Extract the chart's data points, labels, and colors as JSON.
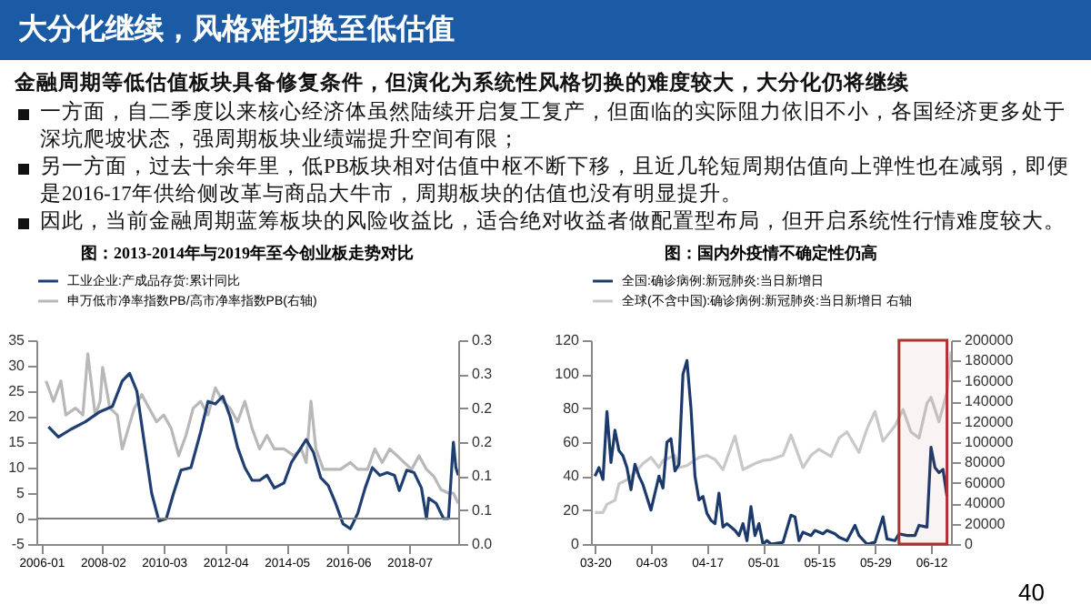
{
  "chart_data": [
    {
      "type": "other",
      "title": "大分化继续，风格难切换至低估值",
      "subtitle": "金融周期等低估值板块具备修复条件，但演化为系统性风格切换的难度较大，大分化仍将继续",
      "annotations": [
        "一方面，自二季度以来核心经济体虽然陆续开启复工复产，但面临的实际阻力依旧不小，各国经济更多处于深坑爬坡状态，强周期板块业绩端提升空间有限；",
        "另一方面，过去十余年里，低PB板块相对估值中枢不断下移，且近几轮短周期估值向上弹性也在减弱，即便是2016-17年供给侧改革与商品大牛市，周期板块的估值也没有明显提升。",
        "因此，当前金融周期蓝筹板块的风险收益比，适合绝对收益者做配置型布局，但开启系统性行情难度较大。",
        "40"
      ]
    },
    {
      "type": "line",
      "title": "图：2013-2014年与2019年至今创业板走势对比",
      "legend": "top",
      "xlim": [
        "2005-11",
        "2020-03"
      ],
      "xticks": [
        "2006-01",
        "2008-02",
        "2010-03",
        "2012-04",
        "2014-05",
        "2016-06",
        "2018-07"
      ],
      "ylim": [
        -5,
        35
      ],
      "yticks": [
        -5,
        0,
        5,
        10,
        15,
        20,
        25,
        30,
        35
      ],
      "y2lim": [
        0,
        0.3
      ],
      "y2ticks": [
        {
          "value": 0,
          "label": "0.0"
        },
        {
          "value": 0.05,
          "label": "0.1"
        },
        {
          "value": 0.1,
          "label": "0.1"
        },
        {
          "value": 0.15,
          "label": "0.2"
        },
        {
          "value": 0.2,
          "label": "0.2"
        },
        {
          "value": 0.25,
          "label": "0.3"
        },
        {
          "value": 0.3,
          "label": "0.3"
        }
      ],
      "ref_lines": [
        {
          "axis": "y",
          "value": 0,
          "color": "#7f7f7f"
        }
      ],
      "series": [
        {
          "name": "工业企业:产成品存货:累计同比",
          "color": "#1f3f73",
          "x": [
            "2006-04",
            "2006-08",
            "2007-01",
            "2007-07",
            "2008-01",
            "2008-06",
            "2008-10",
            "2009-01",
            "2009-04",
            "2009-07",
            "2009-10",
            "2010-01",
            "2010-04",
            "2010-07",
            "2010-10",
            "2011-02",
            "2011-06",
            "2011-09",
            "2011-12",
            "2012-03",
            "2012-06",
            "2012-09",
            "2012-12",
            "2013-03",
            "2013-06",
            "2013-09",
            "2013-12",
            "2014-04",
            "2014-07",
            "2014-11",
            "2015-01",
            "2015-04",
            "2015-07",
            "2015-10",
            "2016-01",
            "2016-04",
            "2016-07",
            "2016-10",
            "2017-01",
            "2017-04",
            "2017-07",
            "2017-10",
            "2018-01",
            "2018-03",
            "2018-06",
            "2018-09",
            "2018-12",
            "2019-02",
            "2019-03",
            "2019-06",
            "2019-09",
            "2019-11",
            "2020-01",
            "2020-02",
            "2020-03"
          ],
          "values": [
            18,
            16,
            17.5,
            19,
            21,
            22,
            27,
            28.5,
            25,
            15,
            5,
            -0.5,
            0,
            5,
            9.5,
            10,
            17,
            23,
            22.5,
            24,
            20,
            14,
            10,
            7.5,
            7.5,
            8.5,
            6,
            7,
            11,
            14,
            15.5,
            13,
            8,
            6.5,
            3,
            -1,
            -2,
            1,
            6,
            10,
            8.5,
            9,
            8.5,
            5.5,
            9.5,
            9,
            6,
            0,
            4,
            3,
            0,
            0,
            15,
            10,
            8.5
          ]
        },
        {
          "name": "申万低市净率指数PB/高市净率指数PB(右轴)",
          "color": "#b8b8b8",
          "axis": "y2",
          "x": [
            "2006-03",
            "2006-06",
            "2006-09",
            "2006-11",
            "2007-03",
            "2007-06",
            "2007-08",
            "2007-11",
            "2008-01",
            "2008-02",
            "2008-05",
            "2008-08",
            "2008-10",
            "2009-03",
            "2009-06",
            "2009-09",
            "2009-12",
            "2010-03",
            "2010-06",
            "2010-09",
            "2010-12",
            "2011-03",
            "2011-06",
            "2011-09",
            "2011-12",
            "2012-03",
            "2012-06",
            "2012-09",
            "2012-12",
            "2013-03",
            "2013-06",
            "2013-09",
            "2013-12",
            "2014-04",
            "2014-08",
            "2014-11",
            "2015-01",
            "2015-03",
            "2015-05",
            "2015-08",
            "2015-11",
            "2016-03",
            "2016-07",
            "2016-10",
            "2017-02",
            "2017-05",
            "2017-08",
            "2017-11",
            "2018-02",
            "2018-05",
            "2018-08",
            "2018-11",
            "2019-02",
            "2019-05",
            "2019-08",
            "2019-11",
            "2020-01",
            "2020-03"
          ],
          "values": [
            0.24,
            0.21,
            0.24,
            0.19,
            0.2,
            0.19,
            0.28,
            0.19,
            0.21,
            0.26,
            0.2,
            0.19,
            0.14,
            0.2,
            0.22,
            0.2,
            0.18,
            0.19,
            0.17,
            0.13,
            0.16,
            0.2,
            0.21,
            0.19,
            0.23,
            0.21,
            0.2,
            0.18,
            0.21,
            0.17,
            0.14,
            0.16,
            0.14,
            0.14,
            0.13,
            0.14,
            0.12,
            0.21,
            0.14,
            0.11,
            0.11,
            0.11,
            0.12,
            0.11,
            0.11,
            0.14,
            0.12,
            0.14,
            0.13,
            0.12,
            0.11,
            0.13,
            0.11,
            0.1,
            0.08,
            0.075,
            0.075,
            0.06
          ]
        }
      ]
    },
    {
      "type": "line",
      "title": "图：国内外疫情不确定性仍高",
      "legend": "top",
      "xlim": [
        "--03-19",
        "--06-17"
      ],
      "xticks": [
        {
          "value": "--03-20",
          "label": "03-20"
        },
        {
          "value": "--04-03",
          "label": "04-03"
        },
        {
          "value": "--04-17",
          "label": "04-17"
        },
        {
          "value": "--05-01",
          "label": "05-01"
        },
        {
          "value": "--05-15",
          "label": "05-15"
        },
        {
          "value": "--05-29",
          "label": "05-29"
        },
        {
          "value": "--06-12",
          "label": "06-12"
        }
      ],
      "ylim": [
        0,
        120
      ],
      "yticks": [
        0,
        20,
        40,
        60,
        80,
        100,
        120
      ],
      "y2lim": [
        0,
        200000
      ],
      "y2ticks": [
        0,
        20000,
        40000,
        60000,
        80000,
        100000,
        120000,
        140000,
        160000,
        180000,
        200000
      ],
      "bands": [
        {
          "axis": "x",
          "from": "--06-04",
          "to": "--06-16",
          "color": "#b03030"
        }
      ],
      "series": [
        {
          "name": "全国:确诊病例:新冠肺炎:当日新增日",
          "color": "#1b3a6b",
          "x": [
            "--03-20",
            "--03-21",
            "--03-22",
            "--03-23",
            "--03-24",
            "--03-25",
            "--03-26",
            "--03-27",
            "--03-28",
            "--03-29",
            "--03-30",
            "--03-31",
            "--04-01",
            "--04-03",
            "--04-04",
            "--04-05",
            "--04-06",
            "--04-07",
            "--04-08",
            "--04-09",
            "--04-10",
            "--04-11",
            "--04-12",
            "--04-13",
            "--04-14",
            "--04-15",
            "--04-16",
            "--04-17",
            "--04-18",
            "--04-19",
            "--04-20",
            "--04-21",
            "--04-22",
            "--04-23",
            "--04-24",
            "--04-25",
            "--04-26",
            "--04-27",
            "--04-28",
            "--04-29",
            "--04-30",
            "--05-01",
            "--05-02",
            "--05-03",
            "--05-06",
            "--05-08",
            "--05-09",
            "--05-10",
            "--05-11",
            "--05-13",
            "--05-14",
            "--05-16",
            "--05-17",
            "--05-19",
            "--05-20",
            "--05-22",
            "--05-24",
            "--05-25",
            "--05-27",
            "--05-29",
            "--05-31",
            "--06-01",
            "--06-03",
            "--06-04",
            "--06-06",
            "--06-08",
            "--06-09",
            "--06-11",
            "--06-12",
            "--06-13",
            "--06-14",
            "--06-15",
            "--06-16"
          ],
          "values": [
            40,
            45,
            38,
            78,
            48,
            67,
            55,
            52,
            45,
            32,
            47,
            40,
            35,
            20,
            30,
            40,
            33,
            60,
            62,
            43,
            47,
            100,
            108,
            80,
            40,
            26,
            28,
            18,
            14,
            12,
            30,
            10,
            12,
            10,
            8,
            5,
            12,
            2,
            22,
            5,
            12,
            0,
            2,
            0,
            1,
            17,
            16,
            2,
            7,
            5,
            8,
            6,
            8,
            6,
            4,
            2,
            11,
            5,
            0,
            1,
            16,
            3,
            2,
            6,
            5,
            5,
            11,
            10,
            57,
            45,
            42,
            44,
            28
          ]
        },
        {
          "name": "全球(不含中国):确诊病例:新冠肺炎:当日新增日 右轴",
          "color": "#c8c8c8",
          "axis": "y2",
          "x": [
            "--03-20",
            "--03-22",
            "--03-23",
            "--03-25",
            "--03-26",
            "--03-28",
            "--03-30",
            "--04-01",
            "--04-03",
            "--04-05",
            "--04-06",
            "--04-09",
            "--04-10",
            "--04-12",
            "--04-15",
            "--04-17",
            "--04-19",
            "--04-21",
            "--04-24",
            "--04-26",
            "--04-29",
            "--05-01",
            "--05-03",
            "--05-06",
            "--05-08",
            "--05-11",
            "--05-13",
            "--05-15",
            "--05-18",
            "--05-20",
            "--05-22",
            "--05-25",
            "--05-27",
            "--05-29",
            "--05-31",
            "--06-03",
            "--06-05",
            "--06-07",
            "--06-09",
            "--06-11",
            "--06-12",
            "--06-14",
            "--06-16",
            "--06-17"
          ],
          "values": [
            31000,
            31000,
            39000,
            43000,
            59000,
            63000,
            70000,
            79000,
            85000,
            75000,
            82000,
            87000,
            75000,
            77000,
            85000,
            87000,
            83000,
            73000,
            106000,
            73000,
            79000,
            82000,
            83000,
            87000,
            107000,
            75000,
            87000,
            93000,
            86000,
            104000,
            110000,
            90000,
            113000,
            130000,
            101000,
            116000,
            132000,
            110000,
            104000,
            138000,
            144000,
            120000,
            149000,
            189000
          ]
        }
      ]
    }
  ]
}
